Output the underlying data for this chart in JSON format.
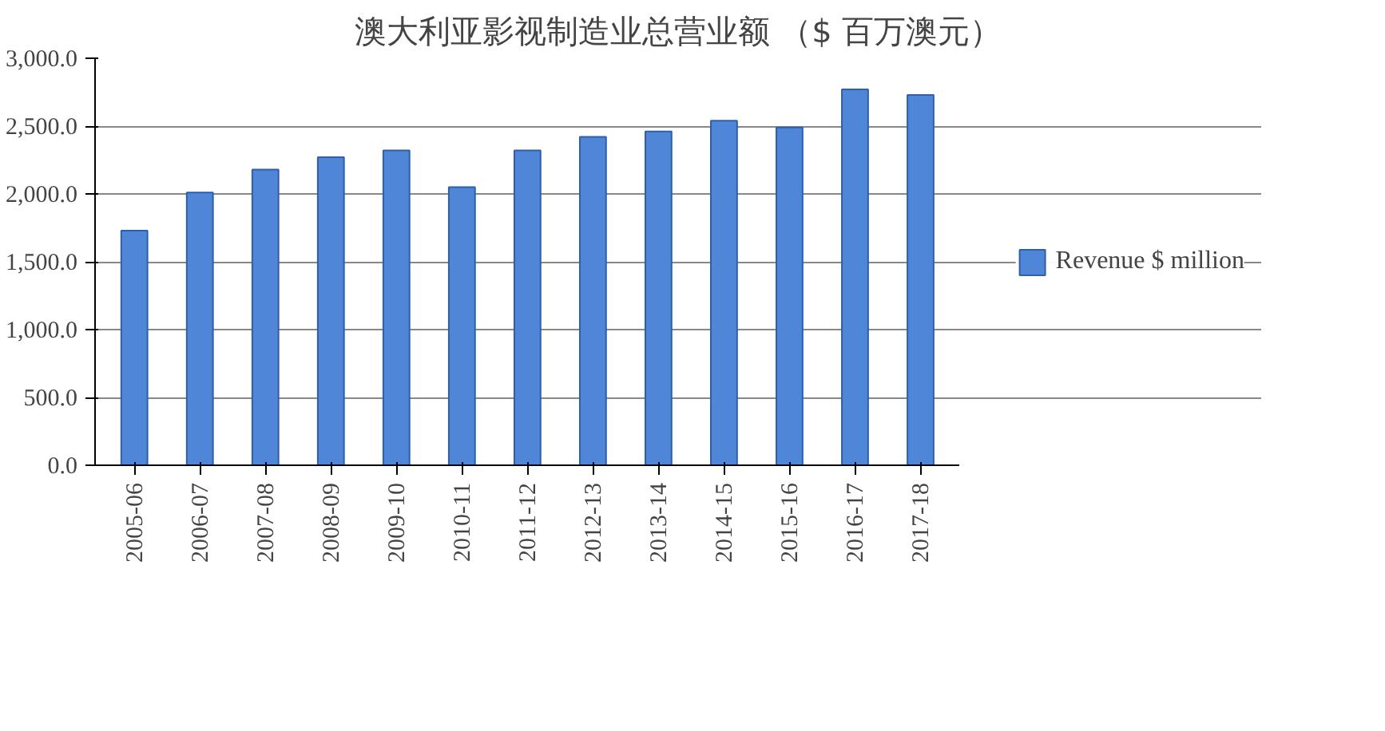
{
  "chart_data": {
    "type": "bar",
    "title": "澳大利亚影视制造业总营业额 （$ 百万澳元）",
    "categories": [
      "2005-06",
      "2006-07",
      "2007-08",
      "2008-09",
      "2009-10",
      "2010-11",
      "2011-12",
      "2012-13",
      "2013-14",
      "2014-15",
      "2015-16",
      "2016-17",
      "2017-18"
    ],
    "series": [
      {
        "name": "Revenue $ million",
        "color": "#4f86d8",
        "values": [
          1730,
          2010,
          2180,
          2270,
          2320,
          2050,
          2320,
          2420,
          2460,
          2540,
          2490,
          2770,
          2730
        ]
      }
    ],
    "ylim": [
      0,
      3000
    ],
    "yticks": [
      {
        "value": 0,
        "label": "0.0"
      },
      {
        "value": 500,
        "label": "500.0"
      },
      {
        "value": 1000,
        "label": "1,000.0"
      },
      {
        "value": 1500,
        "label": "1,500.0"
      },
      {
        "value": 2000,
        "label": "2,000.0"
      },
      {
        "value": 2500,
        "label": "2,500.0"
      },
      {
        "value": 3000,
        "label": "3,000.0"
      }
    ],
    "grid": "y",
    "legend": "right"
  }
}
